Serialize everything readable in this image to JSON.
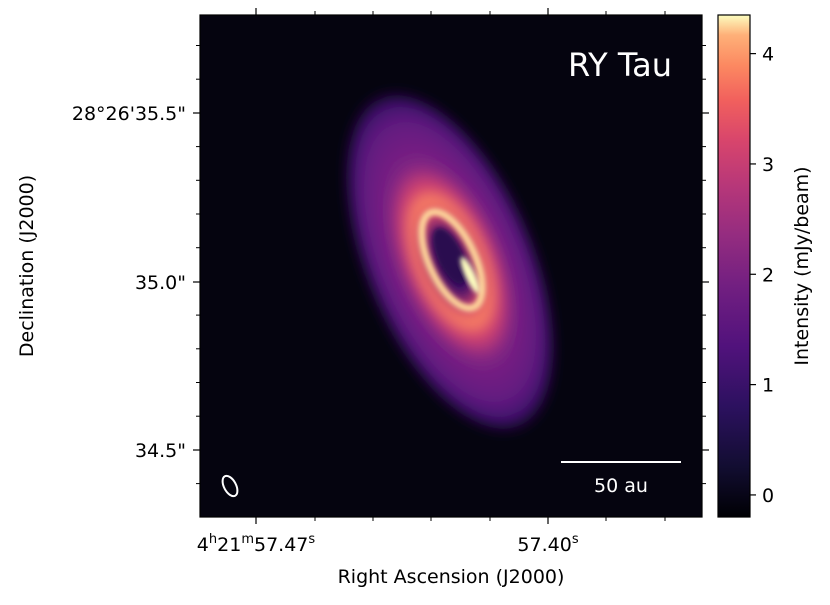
{
  "chart_data": {
    "type": "heatmap",
    "title": "RY Tau",
    "xlabel": "Right Ascension (J2000)",
    "ylabel": "Declination (J2000)",
    "colorbar_label": "Intensity (mJy/beam)",
    "colormap": "magma",
    "colorbar_range": [
      -0.2,
      4.35
    ],
    "colorbar_ticks": [
      "0",
      "1",
      "2",
      "3",
      "4"
    ],
    "colorbar_tick_values": [
      0,
      1,
      2,
      3,
      4
    ],
    "x_tick_labels": {
      "left_hours": "4",
      "left_h": "h",
      "left_minutes": "21",
      "left_m": "m",
      "left_seconds": "57.47",
      "left_s": "s",
      "right_seconds": "57.40",
      "right_s": "s"
    },
    "y_tick_labels": [
      "28°26'35.5\"",
      "35.0\"",
      "34.5\""
    ],
    "scale_bar_label": "50 au",
    "disk": {
      "position_angle_deg": 23,
      "inclination_note": "highly inclined ellipse",
      "inner_cavity": true,
      "peak_intensity": 4.3,
      "ring_intensity": 3.0,
      "outer_disk_intensity": 1.2
    }
  }
}
